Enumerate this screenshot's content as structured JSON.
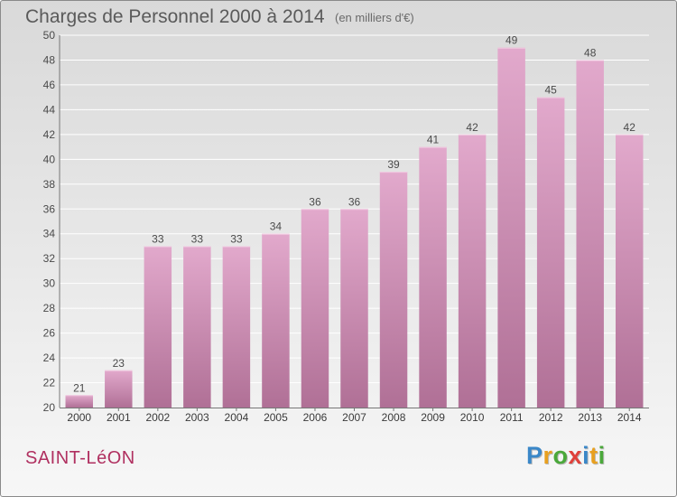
{
  "header": {
    "title": "Charges de Personnel 2000 à 2014",
    "subtitle": "(en milliers d'€)"
  },
  "footer": {
    "place": "SAINT-LéON",
    "logo": [
      "P",
      "r",
      "o",
      "x",
      "i",
      "t",
      "i"
    ],
    "logo_colors": [
      "#3a87c8",
      "#e8a020",
      "#4aa83a",
      "#e0403a",
      "#3a87c8",
      "#e8a020",
      "#4aa83a"
    ]
  },
  "chart_data": {
    "type": "bar",
    "title": "Charges de Personnel 2000 à 2014",
    "subtitle": "(en milliers d'€)",
    "categories": [
      "2000",
      "2001",
      "2002",
      "2003",
      "2004",
      "2005",
      "2006",
      "2007",
      "2008",
      "2009",
      "2010",
      "2011",
      "2012",
      "2013",
      "2014"
    ],
    "values": [
      21,
      23,
      33,
      33,
      33,
      34,
      36,
      36,
      39,
      41,
      42,
      49,
      45,
      48,
      42
    ],
    "ylim": [
      20,
      50
    ],
    "yticks": [
      20,
      22,
      24,
      26,
      28,
      30,
      32,
      34,
      36,
      38,
      40,
      42,
      44,
      46,
      48,
      50
    ],
    "grid": true,
    "bar_color_top": "#e2a9cc",
    "bar_color_bottom": "#b07096"
  }
}
